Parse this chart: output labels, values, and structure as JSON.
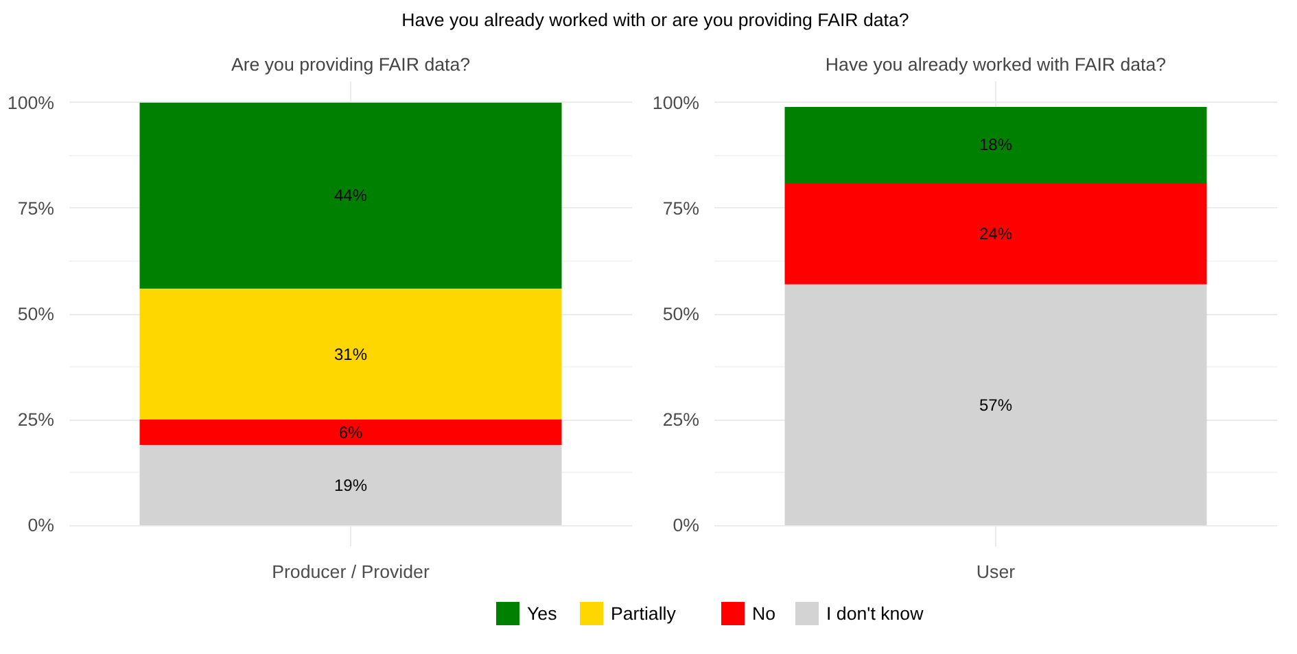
{
  "chart_data": [
    {
      "type": "bar",
      "title": "Have you already worked with or are you providing FAIR data?",
      "subtitle": "Are you providing FAIR data?",
      "categories": [
        "Producer / Provider"
      ],
      "stacked": true,
      "ylim": [
        -5,
        105
      ],
      "yticks": [
        {
          "value": 0,
          "label": "0%"
        },
        {
          "value": 25,
          "label": "25%"
        },
        {
          "value": 50,
          "label": "50%"
        },
        {
          "value": 75,
          "label": "75%"
        },
        {
          "value": 100,
          "label": "100%"
        }
      ],
      "grid": true,
      "legend": "bottom",
      "series": [
        {
          "name": "I don't know",
          "color": "#d3d3d3",
          "values": [
            19
          ],
          "value_labels": [
            "19%"
          ]
        },
        {
          "name": "No",
          "color": "#ff0000",
          "values": [
            6
          ],
          "value_labels": [
            "6%"
          ]
        },
        {
          "name": "Partially",
          "color": "#ffd700",
          "values": [
            31
          ],
          "value_labels": [
            "31%"
          ]
        },
        {
          "name": "Yes",
          "color": "#008000",
          "values": [
            44
          ],
          "value_labels": [
            "44%"
          ]
        }
      ]
    },
    {
      "type": "bar",
      "subtitle": "Have you already worked with FAIR data?",
      "categories": [
        "User"
      ],
      "stacked": true,
      "ylim": [
        -5,
        105
      ],
      "yticks": [
        {
          "value": 0,
          "label": "0%"
        },
        {
          "value": 25,
          "label": "25%"
        },
        {
          "value": 50,
          "label": "50%"
        },
        {
          "value": 75,
          "label": "75%"
        },
        {
          "value": 100,
          "label": "100%"
        }
      ],
      "grid": true,
      "series": [
        {
          "name": "I don't know",
          "color": "#d3d3d3",
          "values": [
            57
          ],
          "value_labels": [
            "57%"
          ]
        },
        {
          "name": "No",
          "color": "#ff0000",
          "values": [
            24
          ],
          "value_labels": [
            "24%"
          ]
        },
        {
          "name": "Partially",
          "color": "#ffd700",
          "values": [
            null
          ],
          "value_labels": [
            null
          ]
        },
        {
          "name": "Yes",
          "color": "#008000",
          "values": [
            18
          ],
          "value_labels": [
            "18%"
          ]
        }
      ]
    }
  ]
}
